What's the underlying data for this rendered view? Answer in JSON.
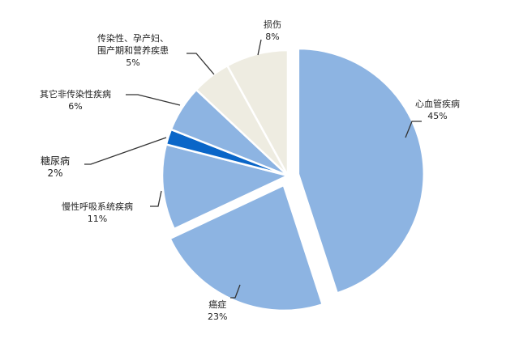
{
  "chart_data": {
    "type": "pie",
    "start_angle_deg": 0,
    "direction": "clockwise",
    "slices": [
      {
        "label": "心血管疾病",
        "value": 45,
        "value_label": "45%",
        "color": "#8DB4E2",
        "exploded": true
      },
      {
        "label": "癌症",
        "value": 23,
        "value_label": "23%",
        "color": "#8DB4E2",
        "exploded": true
      },
      {
        "label": "慢性呼吸系统疾病",
        "value": 11,
        "value_label": "11%",
        "color": "#8DB4E2",
        "exploded": false
      },
      {
        "label": "糖尿病",
        "value": 2,
        "value_label": "2%",
        "color": "#0A66C8",
        "exploded": false
      },
      {
        "label": "其它非传染性疾病",
        "value": 6,
        "value_label": "6%",
        "color": "#8DB4E2",
        "exploded": false
      },
      {
        "label": "传染性、孕产妇、围产期和营养疾患",
        "label_lines": [
          "传染性、孕产妇、",
          "围产期和营养疾患"
        ],
        "value": 5,
        "value_label": "5%",
        "color": "#EEECE1",
        "exploded": false
      },
      {
        "label": "损伤",
        "value": 8,
        "value_label": "8%",
        "color": "#EEECE1",
        "exploded": false
      }
    ]
  }
}
